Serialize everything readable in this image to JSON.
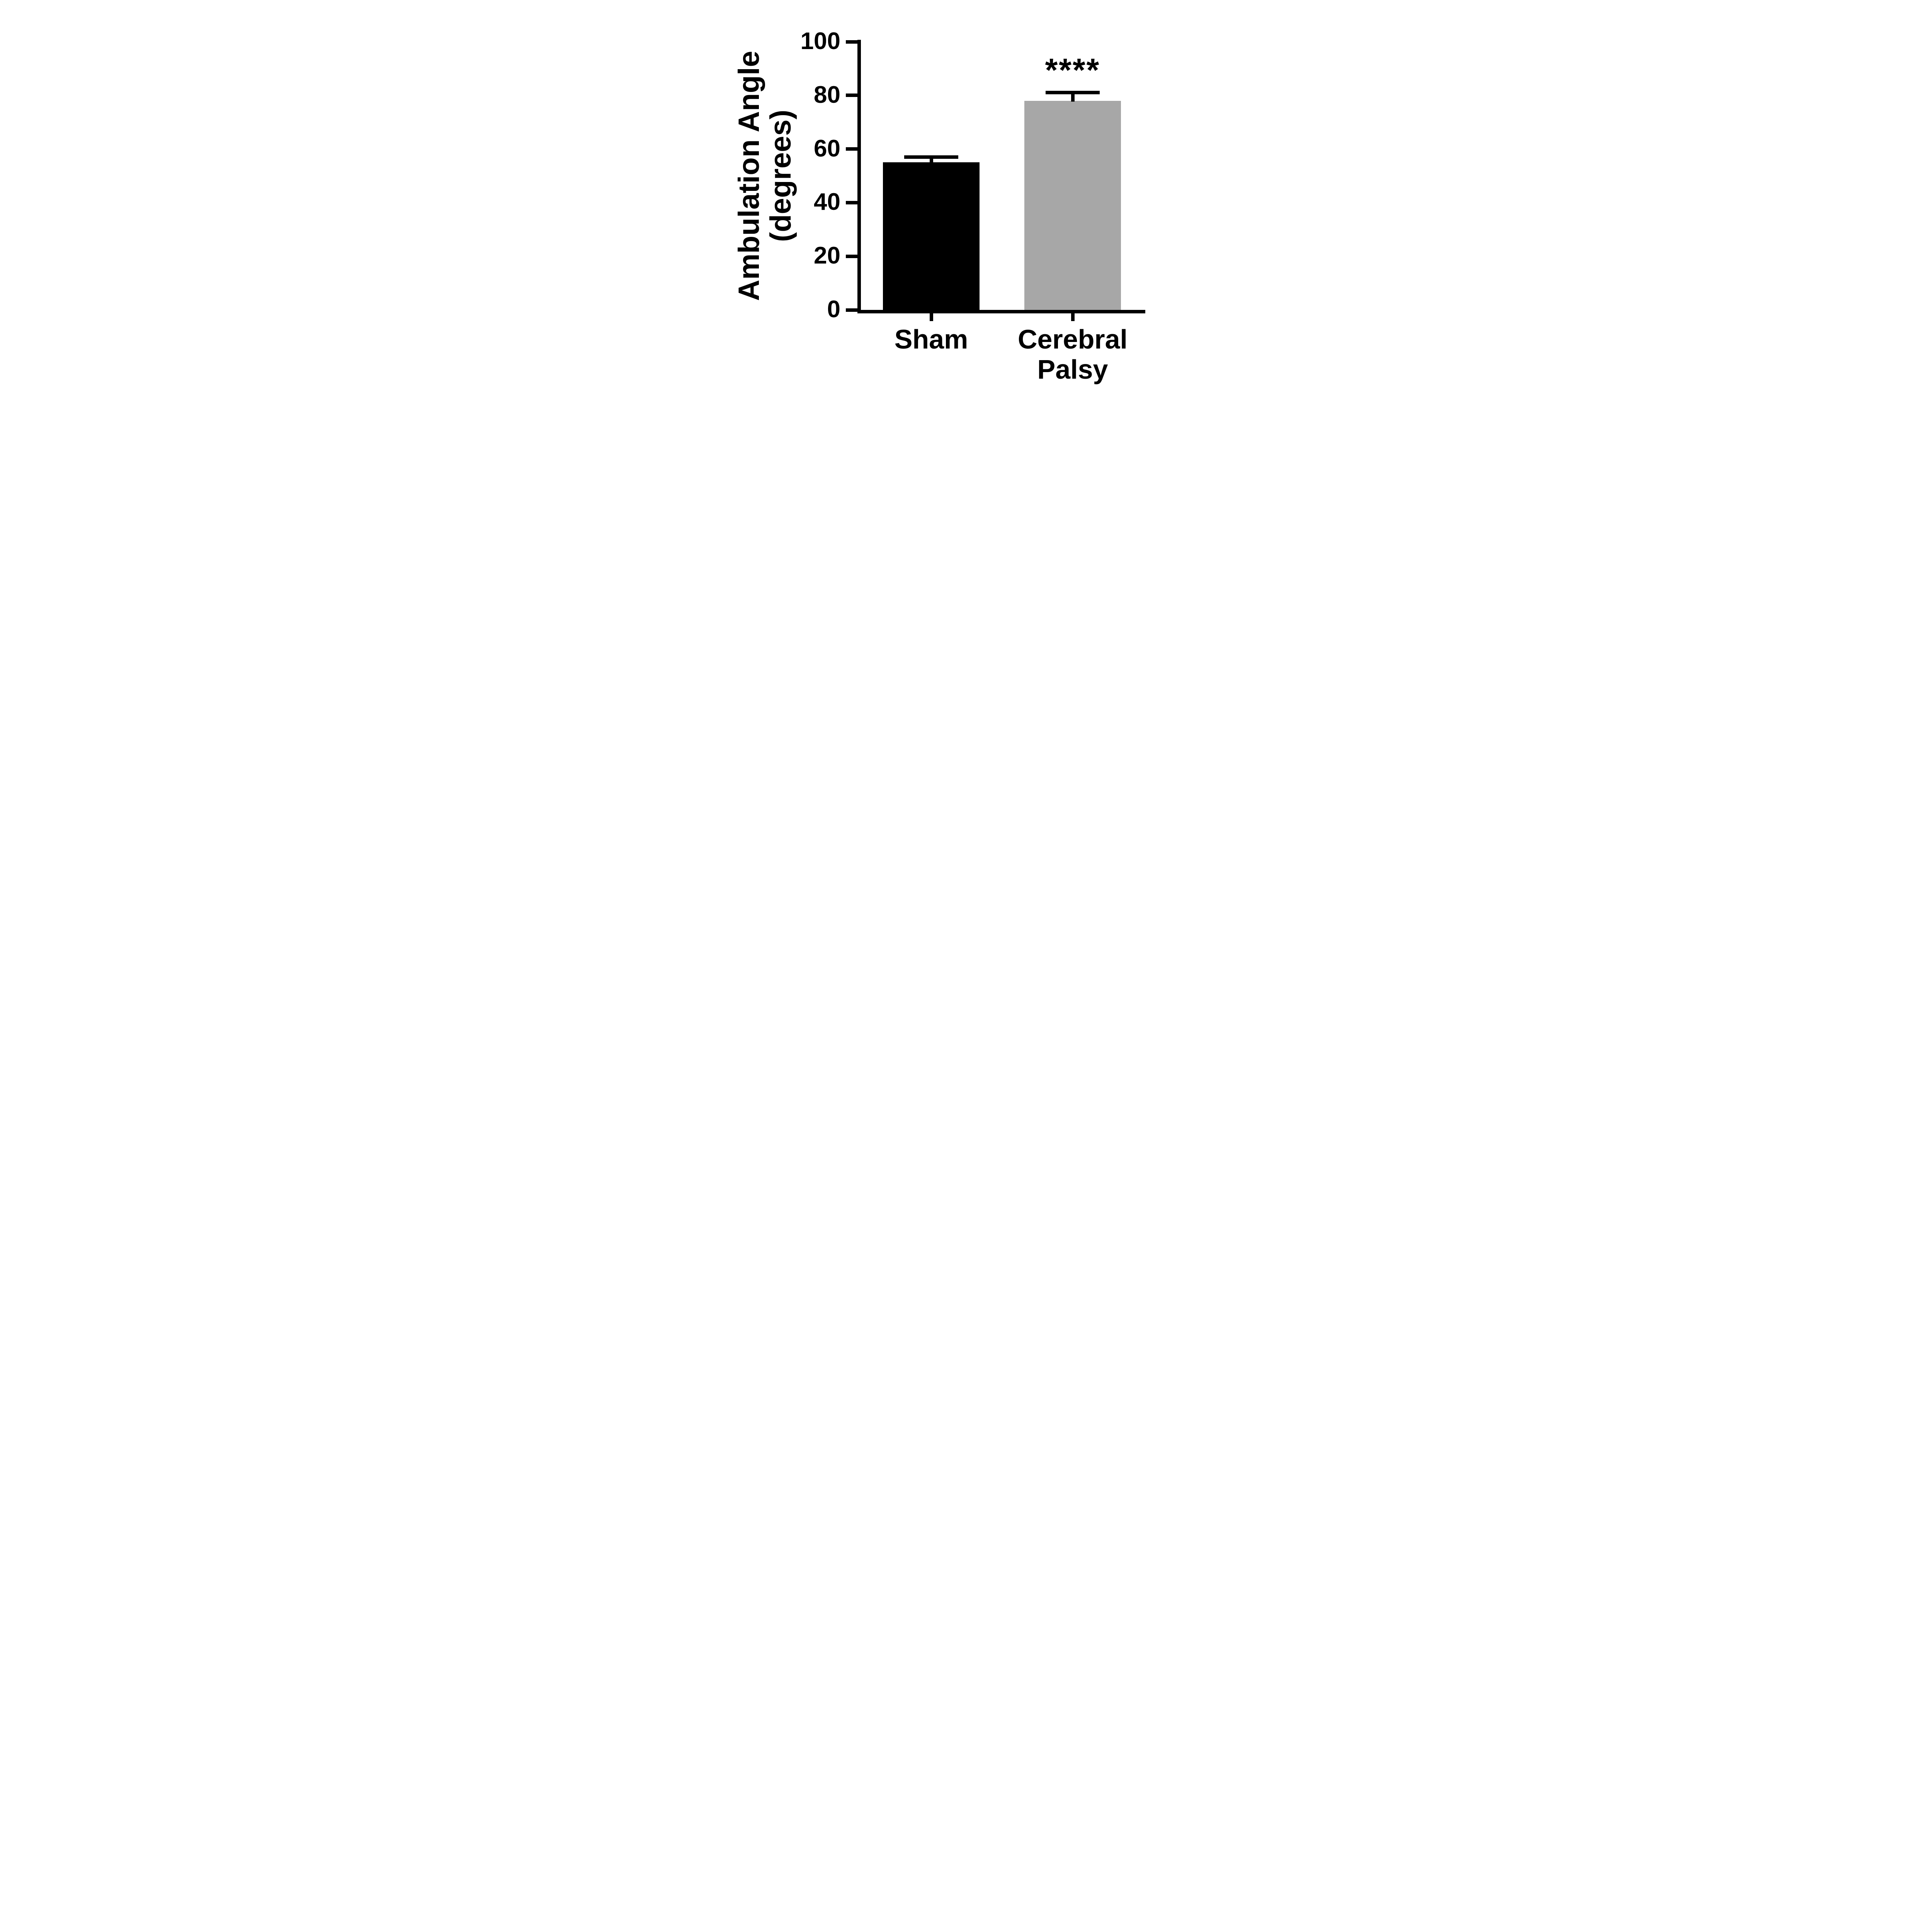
{
  "figure": {
    "background_color": "#ffffff",
    "axis_color": "#000000"
  },
  "chart_data": {
    "type": "bar",
    "title": "",
    "ylabel": "Ambulation Angle (degrees)",
    "ylabel_lines": [
      "Ambulation Angle",
      "(degrees)"
    ],
    "xlabel": "",
    "categories": [
      "Sham",
      "Cerebral Palsy"
    ],
    "category_label_lines": [
      [
        "Sham"
      ],
      [
        "Cerebral",
        "Palsy"
      ]
    ],
    "values": [
      55,
      78
    ],
    "errors": [
      2,
      3
    ],
    "error_type": "SEM (upper only)",
    "bar_colors": [
      "#000000",
      "#a7a7a7"
    ],
    "ylim": [
      0,
      100
    ],
    "yticks": [
      0,
      20,
      40,
      60,
      80,
      100
    ],
    "grid": false,
    "legend": false,
    "annotations": [
      {
        "category": "Cerebral Palsy",
        "text": "****"
      }
    ]
  }
}
